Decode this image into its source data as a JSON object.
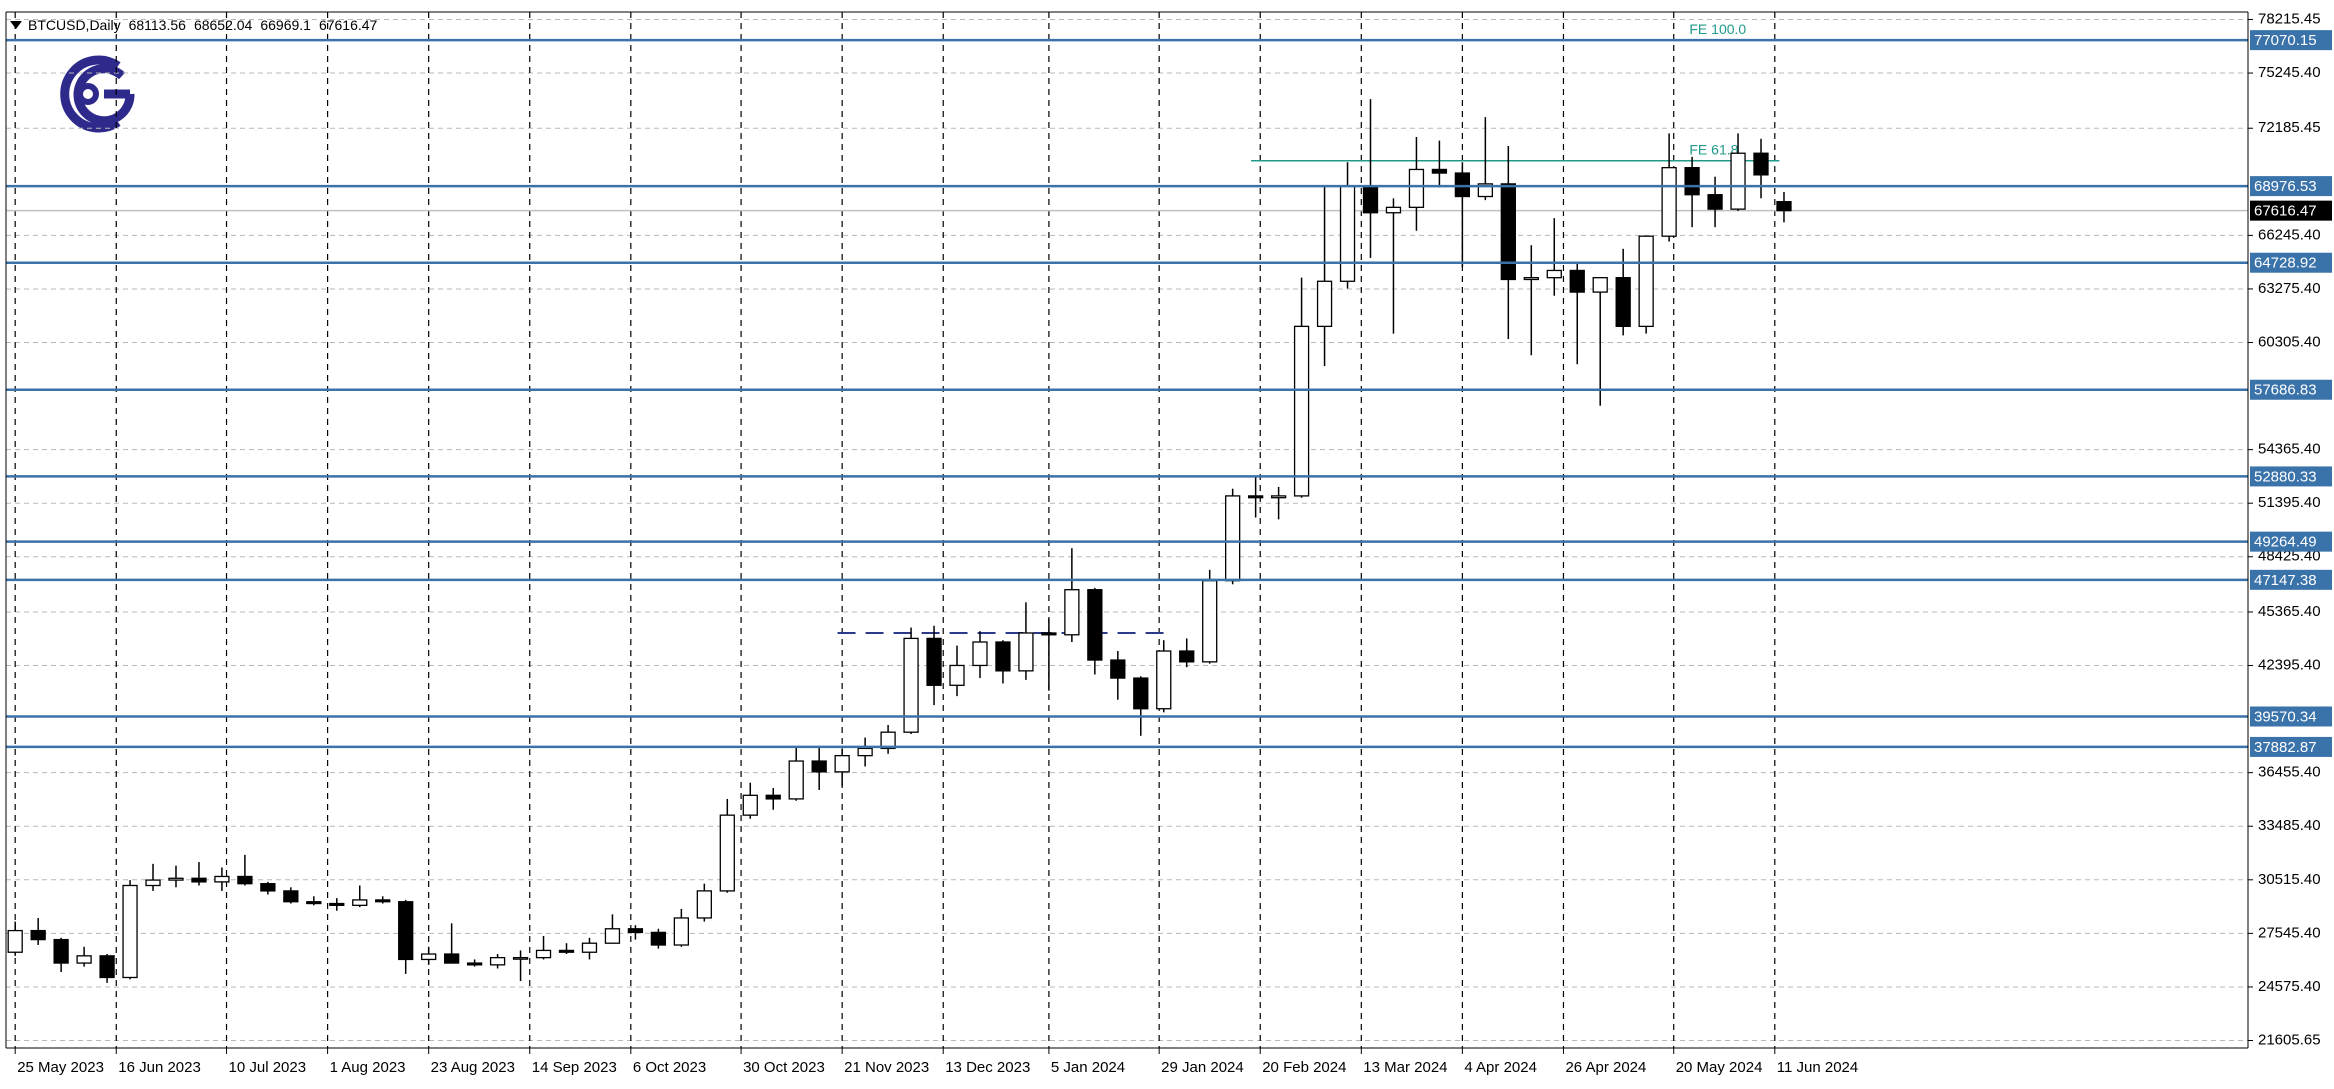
{
  "chart_data": {
    "type": "candlestick",
    "symbol": "BTCUSD,Daily",
    "x": [
      "2023-05-25",
      "2023-05-30",
      "2023-06-04",
      "2023-06-09",
      "2023-06-14",
      "2023-06-19",
      "2023-06-24",
      "2023-06-29",
      "2023-07-04",
      "2023-07-09",
      "2023-07-14",
      "2023-07-19",
      "2023-07-24",
      "2023-07-29",
      "2023-08-03",
      "2023-08-08",
      "2023-08-13",
      "2023-08-18",
      "2023-08-23",
      "2023-08-28",
      "2023-09-02",
      "2023-09-07",
      "2023-09-12",
      "2023-09-17",
      "2023-09-22",
      "2023-09-27",
      "2023-10-02",
      "2023-10-07",
      "2023-10-12",
      "2023-10-17",
      "2023-10-22",
      "2023-10-27",
      "2023-11-01",
      "2023-11-06",
      "2023-11-11",
      "2023-11-16",
      "2023-11-21",
      "2023-11-26",
      "2023-12-01",
      "2023-12-06",
      "2023-12-11",
      "2023-12-16",
      "2023-12-21",
      "2023-12-26",
      "2023-12-31",
      "2024-01-05",
      "2024-01-10",
      "2024-01-15",
      "2024-01-20",
      "2024-01-25",
      "2024-01-30",
      "2024-02-04",
      "2024-02-09",
      "2024-02-14",
      "2024-02-19",
      "2024-02-24",
      "2024-02-29",
      "2024-03-05",
      "2024-03-10",
      "2024-03-15",
      "2024-03-20",
      "2024-03-25",
      "2024-03-30",
      "2024-04-04",
      "2024-04-09",
      "2024-04-14",
      "2024-04-19",
      "2024-04-24",
      "2024-04-29",
      "2024-05-04",
      "2024-05-09",
      "2024-05-14",
      "2024-05-19",
      "2024-05-24",
      "2024-05-29",
      "2024-06-03",
      "2024-06-08",
      "2024-06-13"
    ],
    "open": [
      26500,
      27700,
      27200,
      25900,
      26300,
      25100,
      30200,
      30500,
      30600,
      30400,
      30700,
      30300,
      29900,
      29300,
      29200,
      29100,
      29400,
      29300,
      26100,
      26400,
      25900,
      25800,
      26200,
      26200,
      26600,
      26500,
      27000,
      27800,
      27600,
      26900,
      28400,
      29900,
      34100,
      35200,
      35000,
      37100,
      36500,
      37400,
      37800,
      38700,
      43900,
      41300,
      42400,
      43700,
      42100,
      44200,
      44100,
      46600,
      42700,
      41700,
      40000,
      43200,
      42600,
      47100,
      51800,
      51700,
      51800,
      61200,
      63700,
      69000,
      67500,
      67800,
      69900,
      69700,
      68400,
      69100,
      63800,
      63900,
      64300,
      63100,
      63900,
      61200,
      66200,
      70000,
      68500,
      67700,
      70800,
      68113.56
    ],
    "high": [
      28200,
      28400,
      27300,
      26800,
      26400,
      30500,
      31400,
      31300,
      31500,
      31200,
      31900,
      30400,
      30100,
      29600,
      29500,
      30200,
      29600,
      29400,
      26800,
      28100,
      26100,
      26400,
      26600,
      27400,
      27000,
      27300,
      28600,
      28000,
      27800,
      28900,
      30300,
      35000,
      35900,
      35600,
      37900,
      37900,
      37800,
      38400,
      39100,
      44500,
      44600,
      43500,
      44300,
      43800,
      45900,
      45000,
      48900,
      46700,
      43200,
      41800,
      43800,
      43900,
      47700,
      52200,
      52900,
      52300,
      63900,
      69000,
      70300,
      73800,
      68300,
      71700,
      71500,
      70300,
      72800,
      71200,
      65700,
      67200,
      64700,
      63600,
      65500,
      66200,
      71900,
      70600,
      69500,
      71900,
      71600,
      68652.04
    ],
    "low": [
      26300,
      26900,
      25400,
      25700,
      24800,
      25000,
      29900,
      30100,
      30200,
      29900,
      30200,
      29700,
      29200,
      29100,
      28800,
      29000,
      29200,
      25300,
      25800,
      25900,
      25700,
      25600,
      24900,
      26100,
      26400,
      26100,
      27000,
      27200,
      26700,
      26800,
      28200,
      29800,
      33900,
      34400,
      34900,
      35500,
      35700,
      36800,
      37500,
      38600,
      40200,
      40700,
      41700,
      41400,
      41600,
      41000,
      43700,
      41900,
      40500,
      38500,
      39800,
      42300,
      42500,
      46900,
      50600,
      50500,
      51700,
      59000,
      63300,
      65000,
      60800,
      66500,
      68900,
      64500,
      68200,
      60500,
      59600,
      62900,
      59100,
      56800,
      60700,
      60800,
      65900,
      66700,
      66700,
      67600,
      68300,
      66969.1
    ],
    "close": [
      27700,
      27200,
      25900,
      26300,
      25100,
      30200,
      30500,
      30600,
      30400,
      30700,
      30300,
      29900,
      29300,
      29200,
      29100,
      29400,
      29300,
      26100,
      26400,
      25900,
      25800,
      26200,
      26200,
      26600,
      26500,
      27000,
      27800,
      27600,
      26900,
      28400,
      29900,
      34100,
      35200,
      35000,
      37100,
      36500,
      37400,
      37800,
      38700,
      43900,
      41300,
      42400,
      43700,
      42100,
      44200,
      44100,
      46600,
      42700,
      41700,
      40000,
      43200,
      42600,
      47100,
      51800,
      51700,
      51800,
      61200,
      63700,
      69000,
      67500,
      67800,
      69900,
      69700,
      68400,
      69100,
      63800,
      63900,
      64300,
      63100,
      63900,
      61200,
      66200,
      70000,
      68500,
      67700,
      70800,
      69600,
      67616.47
    ],
    "xlim": [
      "2023-05-23",
      "2024-09-22"
    ],
    "xticks": [
      {
        "value": "2023-05-25",
        "label": "25 May 2023"
      },
      {
        "value": "2023-06-16",
        "label": "16 Jun 2023"
      },
      {
        "value": "2023-07-10",
        "label": "10 Jul 2023"
      },
      {
        "value": "2023-08-01",
        "label": "1 Aug 2023"
      },
      {
        "value": "2023-08-23",
        "label": "23 Aug 2023"
      },
      {
        "value": "2023-09-14",
        "label": "14 Sep 2023"
      },
      {
        "value": "2023-10-06",
        "label": "6 Oct 2023"
      },
      {
        "value": "2023-10-30",
        "label": "30 Oct 2023"
      },
      {
        "value": "2023-11-21",
        "label": "21 Nov 2023"
      },
      {
        "value": "2023-12-13",
        "label": "13 Dec 2023"
      },
      {
        "value": "2024-01-05",
        "label": "5 Jan 2024"
      },
      {
        "value": "2024-01-29",
        "label": "29 Jan 2024"
      },
      {
        "value": "2024-02-20",
        "label": "20 Feb 2024"
      },
      {
        "value": "2024-03-13",
        "label": "13 Mar 2024"
      },
      {
        "value": "2024-04-04",
        "label": "4 Apr 2024"
      },
      {
        "value": "2024-04-26",
        "label": "26 Apr 2024"
      },
      {
        "value": "2024-05-20",
        "label": "20 May 2024"
      },
      {
        "value": "2024-06-11",
        "label": "11 Jun 2024"
      }
    ],
    "ylim": [
      21190,
      78630
    ],
    "yticks": [
      78215.45,
      {
        "value": 75245.4,
        "label": "75245.40"
      },
      72185.45,
      {
        "value": 66245.4,
        "label": "66245.40"
      },
      {
        "value": 63275.4,
        "label": "63275.40"
      },
      {
        "value": 60305.4,
        "label": "60305.40"
      },
      {
        "value": 54365.4,
        "label": "54365.40"
      },
      {
        "value": 51395.4,
        "label": "51395.40"
      },
      {
        "value": 48425.4,
        "label": "48425.40"
      },
      {
        "value": 45365.4,
        "label": "45365.40"
      },
      {
        "value": 42395.4,
        "label": "42395.40"
      },
      {
        "value": 36455.4,
        "label": "36455.40"
      },
      {
        "value": 33485.4,
        "label": "33485.40"
      },
      {
        "value": 30515.4,
        "label": "30515.40"
      },
      {
        "value": 27545.4,
        "label": "27545.40"
      },
      {
        "value": 24575.4,
        "label": "24575.40"
      },
      21605.65
    ],
    "grid": true,
    "levels": [
      77070.15,
      68976.53,
      64728.92,
      57686.83,
      52880.33,
      49264.49,
      47147.38,
      39570.34,
      37882.87
    ],
    "level_color": "#3a72aa",
    "fe_lines": [
      {
        "label": "FE 100.0",
        "value": 77070.15,
        "from": "2024-02-18",
        "to": "2024-06-12"
      },
      {
        "label": "FE 61.8",
        "value": 70380,
        "from": "2024-02-18",
        "to": "2024-06-12"
      }
    ],
    "fe_color": "#1f9a8a",
    "hlines": [
      {
        "value": 44200,
        "from": "2023-11-20",
        "to": "2024-01-31"
      }
    ],
    "hline_color": "#2b3a8a"
  }
}
